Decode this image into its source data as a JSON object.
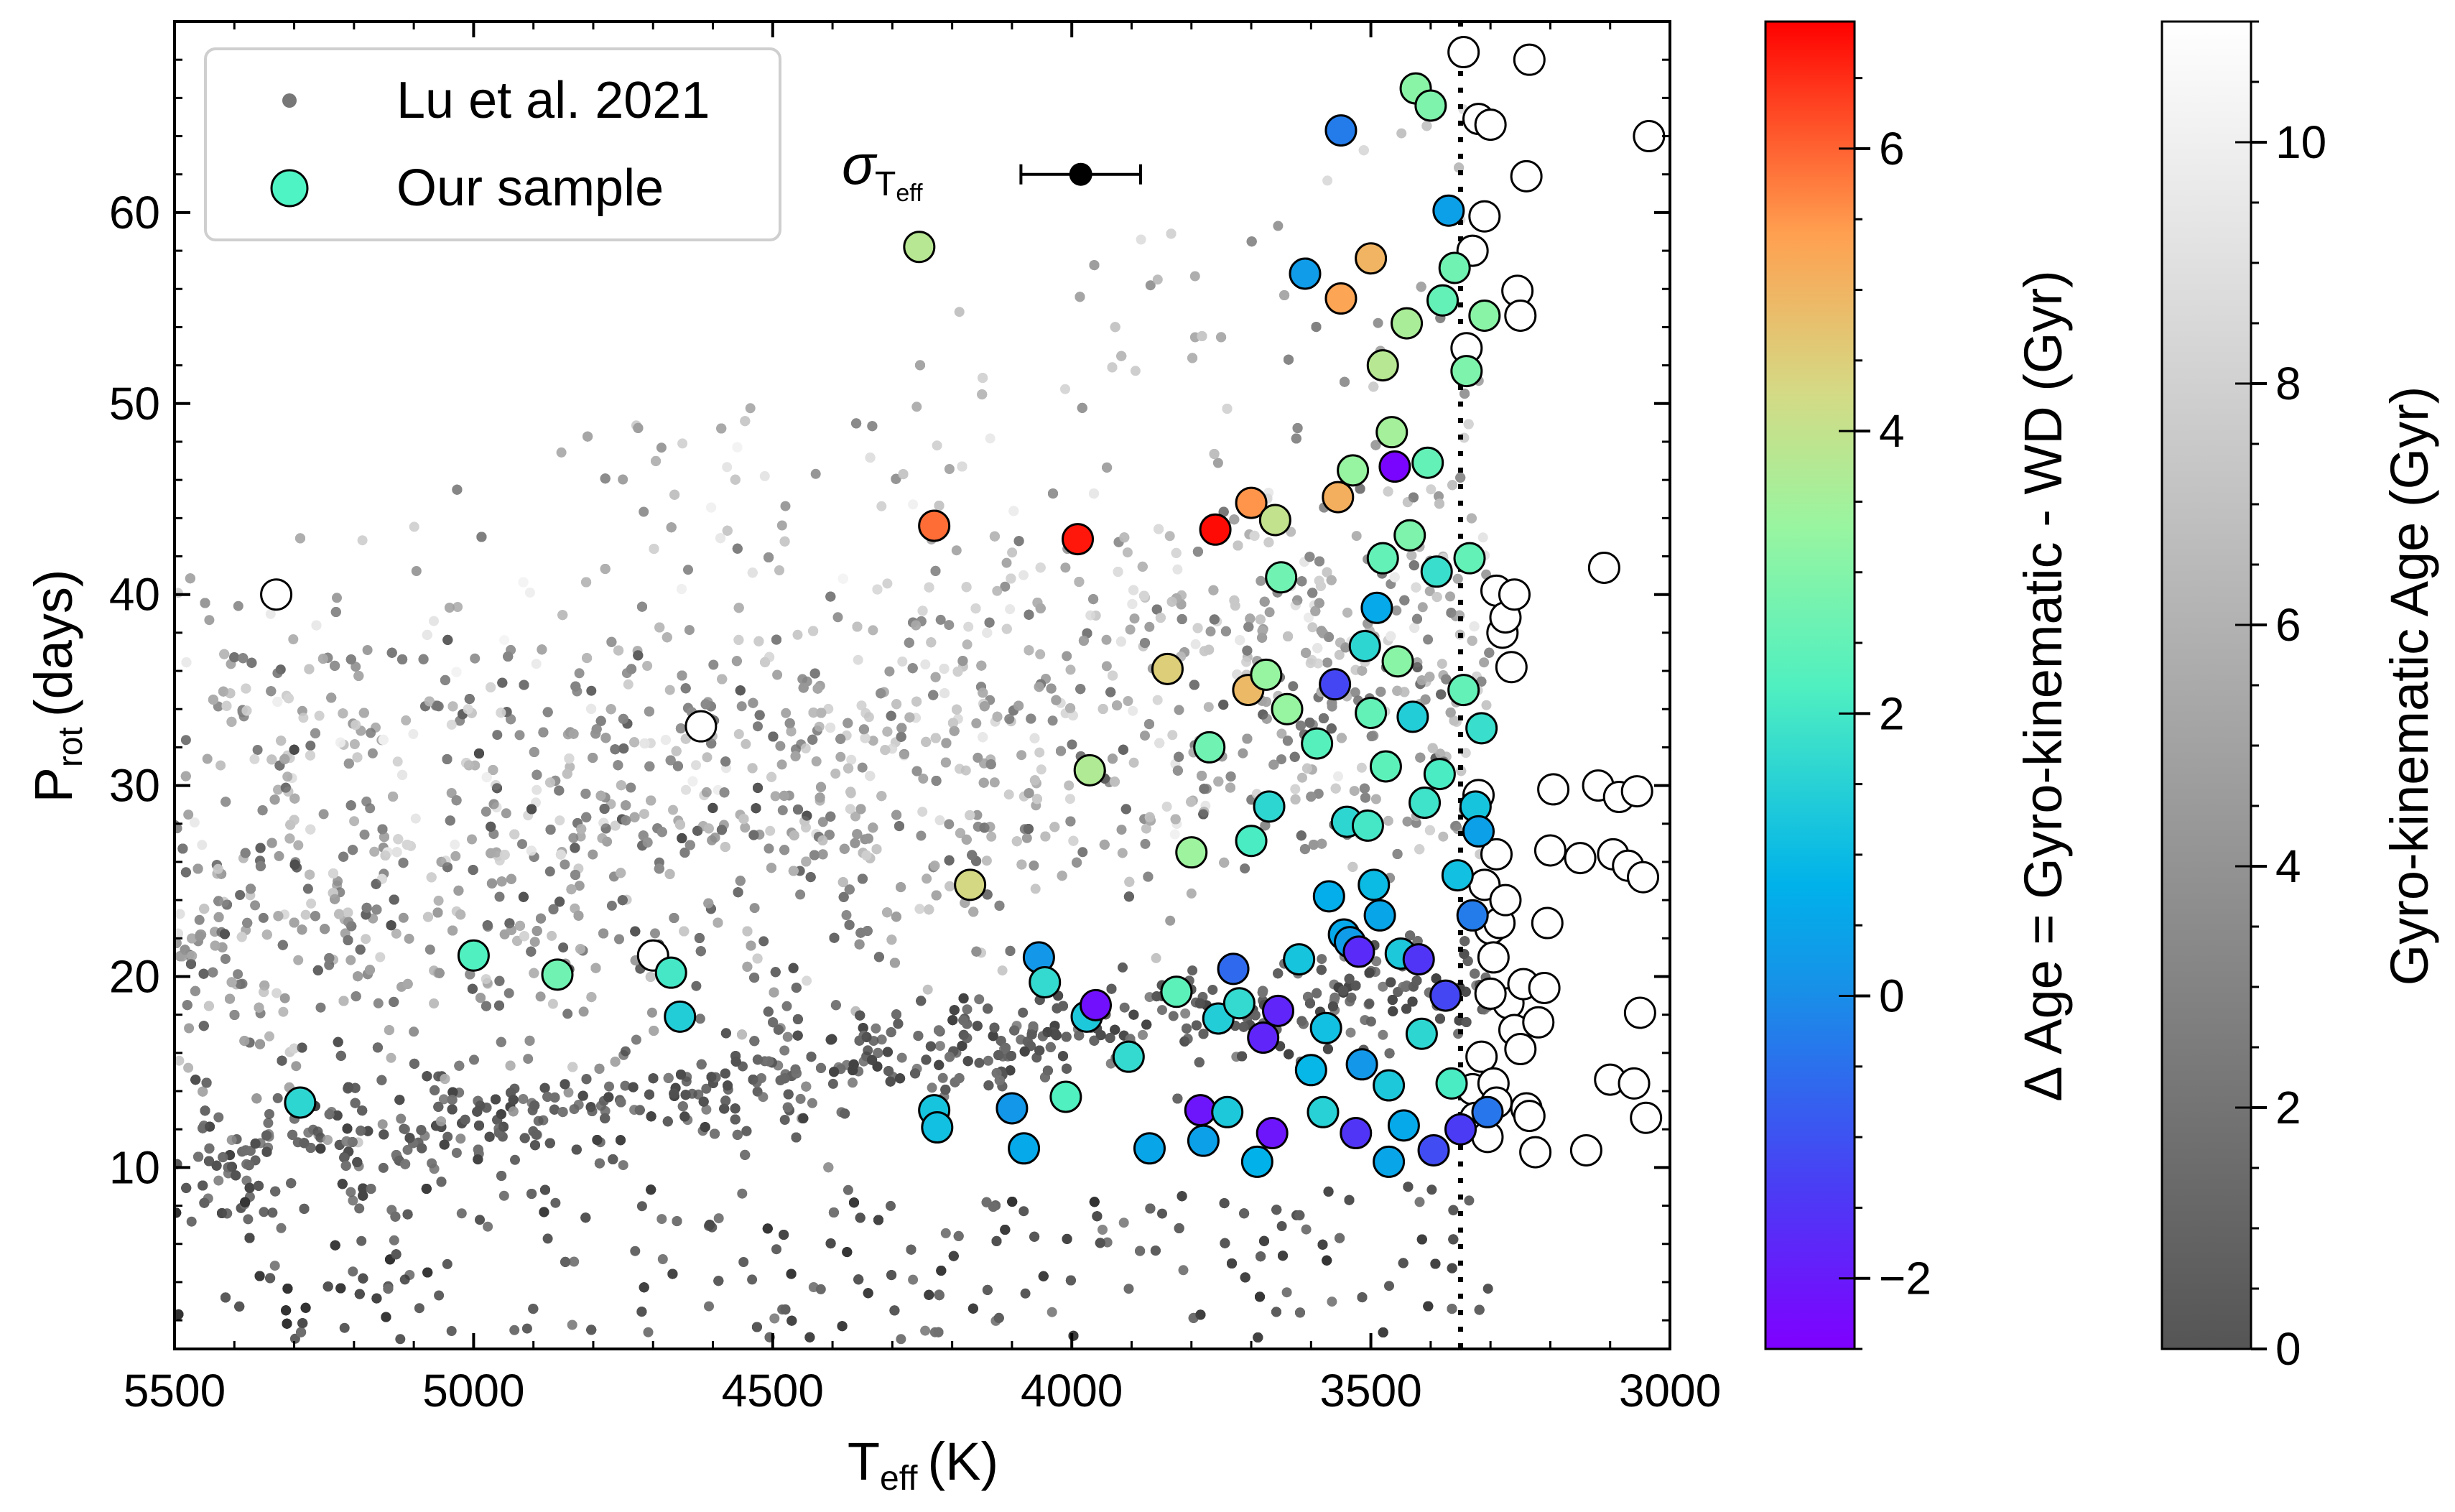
{
  "chart_data": {
    "type": "scatter",
    "xlabel": "T",
    "xlabel_sub": "eff",
    "xlabel_unit": "(K)",
    "ylabel": "P",
    "ylabel_sub": "rot",
    "ylabel_unit": "(days)",
    "xlim": [
      5500,
      3000
    ],
    "ylim": [
      0.5,
      70
    ],
    "xticks": [
      5500,
      5000,
      4500,
      4000,
      3500,
      3000
    ],
    "yticks": [
      10,
      20,
      30,
      40,
      50,
      60
    ],
    "grid": false,
    "legend": {
      "position": "top-left",
      "entries": [
        "Lu et al. 2021",
        "Our sample"
      ]
    },
    "annotation": {
      "symbol": "σ",
      "subscript": "T",
      "subsub": "eff",
      "errorbar_center": [
        3985,
        62.0
      ],
      "errorbar_halfwidth_K": 100
    },
    "cutoff_line_teff": 3350,
    "colorbar_delta": {
      "label": "Δ Age = Gyro-kinematic - WD (Gyr)",
      "range": [
        -2.5,
        6.9
      ],
      "ticks": [
        -2,
        0,
        2,
        4,
        6
      ],
      "tick_labels": [
        "−2",
        "0",
        "2",
        "4",
        "6"
      ],
      "colormap": "rainbow"
    },
    "colorbar_age": {
      "label": "Gyro-kinematic Age (Gyr)",
      "range": [
        0,
        11
      ],
      "ticks": [
        0,
        2,
        4,
        6,
        8,
        10
      ],
      "tick_labels": [
        "0",
        "2",
        "4",
        "6",
        "8",
        "10"
      ],
      "colormap": "gray"
    },
    "series": [
      {
        "name": "Lu et al. 2021",
        "description": "dense background cloud (~thousands of points), procedurally approximated",
        "approx_points": 9000
      },
      {
        "name": "Our sample",
        "points_teff_prot_deltaage": [
          [
            5290,
            13.4,
            1.6
          ],
          [
            5000,
            21.1,
            2.2
          ],
          [
            4860,
            20.1,
            2.7
          ],
          [
            4670,
            20.2,
            2.0
          ],
          [
            4655,
            17.9,
            1.4
          ],
          [
            4255,
            58.2,
            3.8
          ],
          [
            4230,
            43.6,
            5.9
          ],
          [
            4230,
            13.0,
            1.2
          ],
          [
            4225,
            12.1,
            1.1
          ],
          [
            4170,
            24.8,
            4.3
          ],
          [
            4100,
            13.1,
            0.2
          ],
          [
            4080,
            11.0,
            0.6
          ],
          [
            4055,
            21.0,
            0.2
          ],
          [
            4045,
            19.7,
            1.7
          ],
          [
            4010,
            13.7,
            2.2
          ],
          [
            3990,
            42.9,
            6.7
          ],
          [
            3975,
            17.9,
            1.3
          ],
          [
            3970,
            30.8,
            3.7
          ],
          [
            3960,
            18.5,
            -2.2
          ],
          [
            3905,
            15.8,
            1.7
          ],
          [
            3870,
            11.0,
            0.5
          ],
          [
            3840,
            36.1,
            4.5
          ],
          [
            3825,
            19.2,
            2.4
          ],
          [
            3800,
            26.5,
            3.4
          ],
          [
            3780,
            11.4,
            0.4
          ],
          [
            3785,
            13.0,
            -2.1
          ],
          [
            3770,
            32.0,
            2.7
          ],
          [
            3760,
            43.4,
            6.8
          ],
          [
            3755,
            17.8,
            1.4
          ],
          [
            3740,
            12.9,
            1.3
          ],
          [
            3730,
            20.4,
            -0.6
          ],
          [
            3720,
            18.6,
            1.7
          ],
          [
            3705,
            35.0,
            4.9
          ],
          [
            3700,
            44.8,
            5.5
          ],
          [
            3700,
            27.1,
            2.1
          ],
          [
            3690,
            10.3,
            0.8
          ],
          [
            3680,
            16.8,
            -1.8
          ],
          [
            3675,
            35.8,
            3.3
          ],
          [
            3670,
            28.9,
            1.6
          ],
          [
            3665,
            11.8,
            -2.1
          ],
          [
            3660,
            43.9,
            4.0
          ],
          [
            3655,
            18.2,
            -1.8
          ],
          [
            3650,
            40.9,
            2.7
          ],
          [
            3640,
            34.0,
            3.3
          ],
          [
            3620,
            20.9,
            1.2
          ],
          [
            3610,
            56.8,
            0.3
          ],
          [
            3600,
            15.1,
            0.9
          ],
          [
            3590,
            32.2,
            2.3
          ],
          [
            3580,
            12.9,
            1.5
          ],
          [
            3575,
            17.3,
            1.1
          ],
          [
            3570,
            24.2,
            0.7
          ],
          [
            3560,
            35.3,
            -1.2
          ],
          [
            3555,
            45.1,
            5.1
          ],
          [
            3550,
            64.3,
            -0.3
          ],
          [
            3550,
            55.5,
            5.3
          ],
          [
            3545,
            22.2,
            0.6
          ],
          [
            3540,
            28.1,
            1.6
          ],
          [
            3535,
            21.8,
            0.3
          ],
          [
            3530,
            46.5,
            3.3
          ],
          [
            3525,
            11.8,
            -1.5
          ],
          [
            3520,
            21.3,
            -1.7
          ],
          [
            3515,
            15.4,
            0.2
          ],
          [
            3510,
            37.3,
            1.6
          ],
          [
            3505,
            27.9,
            2.0
          ],
          [
            3500,
            57.6,
            5.0
          ],
          [
            3500,
            33.8,
            2.5
          ],
          [
            3495,
            24.8,
            1.0
          ],
          [
            3490,
            39.3,
            0.6
          ],
          [
            3485,
            23.2,
            0.5
          ],
          [
            3480,
            52.0,
            3.8
          ],
          [
            3480,
            41.9,
            2.5
          ],
          [
            3475,
            31.0,
            2.4
          ],
          [
            3470,
            14.3,
            1.3
          ],
          [
            3470,
            10.3,
            0.5
          ],
          [
            3465,
            48.5,
            3.5
          ],
          [
            3460,
            46.7,
            -2.4
          ],
          [
            3455,
            36.5,
            3.1
          ],
          [
            3450,
            21.2,
            1.3
          ],
          [
            3445,
            12.2,
            0.6
          ],
          [
            3440,
            54.2,
            3.6
          ],
          [
            3435,
            43.1,
            2.9
          ],
          [
            3430,
            33.6,
            1.4
          ],
          [
            3425,
            66.5,
            3.1
          ],
          [
            3420,
            20.9,
            -1.5
          ],
          [
            3415,
            17.0,
            1.6
          ],
          [
            3410,
            29.1,
            1.9
          ],
          [
            3405,
            46.9,
            2.5
          ],
          [
            3400,
            65.6,
            2.9
          ],
          [
            3395,
            10.9,
            -1.1
          ],
          [
            3390,
            41.2,
            1.8
          ],
          [
            3385,
            30.6,
            2.1
          ],
          [
            3380,
            55.4,
            2.5
          ],
          [
            3375,
            19.0,
            -1.2
          ],
          [
            3370,
            60.1,
            0.4
          ],
          [
            3365,
            14.4,
            2.1
          ],
          [
            3360,
            57.1,
            2.7
          ],
          [
            3355,
            25.3,
            1.1
          ],
          [
            3350,
            12.0,
            -1.4
          ],
          [
            3345,
            35.0,
            2.5
          ],
          [
            3340,
            51.7,
            2.9
          ],
          [
            3335,
            41.9,
            2.5
          ],
          [
            3330,
            23.2,
            -0.3
          ],
          [
            3325,
            28.9,
            1.2
          ],
          [
            3320,
            27.6,
            0.4
          ],
          [
            3315,
            33.0,
            1.8
          ],
          [
            3310,
            54.6,
            3.1
          ],
          [
            3305,
            12.9,
            -0.4
          ]
        ]
      },
      {
        "name": "Our sample (unclassified, open markers)",
        "points_teff_prot": [
          [
            5330,
            40.0
          ],
          [
            4620,
            33.1
          ],
          [
            4700,
            21.1
          ],
          [
            3345,
            68.4
          ],
          [
            3340,
            52.9
          ],
          [
            3330,
            58.0
          ],
          [
            3320,
            64.9
          ],
          [
            3310,
            59.8
          ],
          [
            3300,
            64.6
          ],
          [
            3290,
            40.2
          ],
          [
            3280,
            38.0
          ],
          [
            3275,
            38.8
          ],
          [
            3265,
            36.2
          ],
          [
            3260,
            40.0
          ],
          [
            3255,
            55.9
          ],
          [
            3250,
            54.6
          ],
          [
            3240,
            61.9
          ],
          [
            3235,
            68.0
          ],
          [
            3320,
            29.5
          ],
          [
            3310,
            24.8
          ],
          [
            3300,
            22.5
          ],
          [
            3295,
            21.0
          ],
          [
            3290,
            26.4
          ],
          [
            3285,
            22.8
          ],
          [
            3275,
            24.0
          ],
          [
            3270,
            18.6
          ],
          [
            3260,
            17.2
          ],
          [
            3250,
            16.2
          ],
          [
            3245,
            19.6
          ],
          [
            3240,
            13.1
          ],
          [
            3235,
            12.7
          ],
          [
            3225,
            10.8
          ],
          [
            3220,
            17.6
          ],
          [
            3210,
            19.4
          ],
          [
            3205,
            22.8
          ],
          [
            3200,
            26.6
          ],
          [
            3195,
            29.8
          ],
          [
            3150,
            26.2
          ],
          [
            3140,
            10.9
          ],
          [
            3120,
            30.0
          ],
          [
            3110,
            41.4
          ],
          [
            3100,
            14.6
          ],
          [
            3095,
            26.4
          ],
          [
            3085,
            29.4
          ],
          [
            3070,
            25.8
          ],
          [
            3060,
            14.4
          ],
          [
            3055,
            29.7
          ],
          [
            3050,
            18.1
          ],
          [
            3045,
            25.2
          ],
          [
            3040,
            12.6
          ],
          [
            3035,
            64.0
          ],
          [
            3330,
            14.1
          ],
          [
            3325,
            12.6
          ],
          [
            3315,
            15.8
          ],
          [
            3305,
            11.6
          ],
          [
            3300,
            19.1
          ],
          [
            3295,
            14.4
          ],
          [
            3290,
            13.4
          ]
        ]
      }
    ]
  }
}
